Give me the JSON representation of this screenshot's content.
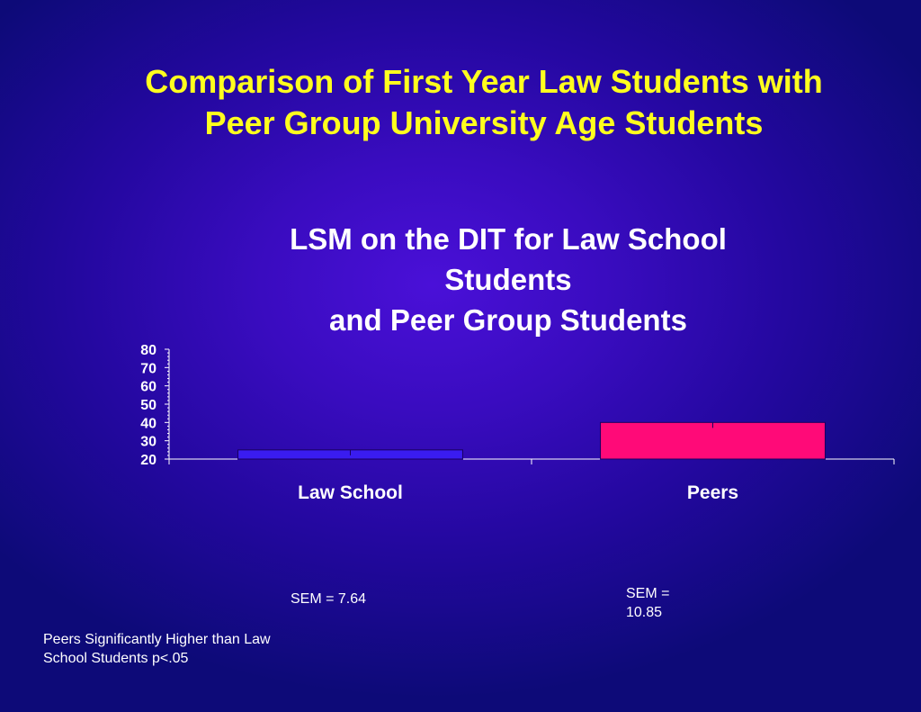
{
  "slide": {
    "title_lines": [
      "Comparison of First Year Law Students with",
      "Peer Group University Age Students"
    ],
    "background": "#2a0aa8",
    "title_color": "#ffff1e"
  },
  "chart_data": {
    "type": "bar",
    "title_lines": [
      "LSM on the DIT for Law School",
      "Students",
      "and Peer Group Students"
    ],
    "categories": [
      "Law School",
      "Peers"
    ],
    "series": [
      {
        "values": [
          25,
          40
        ]
      }
    ],
    "bar_colors": [
      "#3a1cf0",
      "#ff0a78"
    ],
    "ylim": [
      20,
      80
    ],
    "yticks": [
      20,
      30,
      40,
      50,
      60,
      70,
      80
    ],
    "xlabel": "",
    "ylabel": "",
    "grid": false,
    "legend": "none"
  },
  "annotations": {
    "sem_law_lines": [
      "SEM = 7.64"
    ],
    "sem_peers_lines": [
      "SEM =",
      "10.85"
    ],
    "significance_lines": [
      "Peers Significantly Higher than Law",
      "School Students p<.05"
    ]
  }
}
